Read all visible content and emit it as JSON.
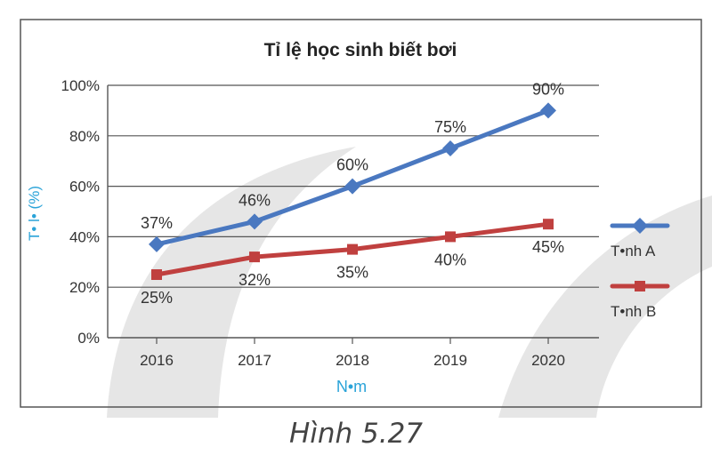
{
  "chart_data": {
    "type": "line",
    "title": "Tỉ lệ học sinh biết bơi",
    "xlabel": "N•m",
    "ylabel": "T• l• (%)",
    "categories": [
      "2016",
      "2017",
      "2018",
      "2019",
      "2020"
    ],
    "ylim": [
      0,
      100
    ],
    "yticks": [
      0,
      20,
      40,
      60,
      80,
      100
    ],
    "ytick_labels": [
      "0%",
      "20%",
      "40%",
      "60%",
      "80%",
      "100%"
    ],
    "grid": true,
    "legend_position": "right",
    "series": [
      {
        "name": "T•nh A",
        "values": [
          37,
          46,
          60,
          75,
          90
        ],
        "labels": [
          "37%",
          "46%",
          "60%",
          "75%",
          "90%"
        ],
        "color": "#4a78c0",
        "marker": "diamond"
      },
      {
        "name": "T•nh B",
        "values": [
          25,
          32,
          35,
          40,
          45
        ],
        "labels": [
          "25%",
          "32%",
          "35%",
          "40%",
          "45%"
        ],
        "color": "#c0403f",
        "marker": "square"
      }
    ]
  },
  "caption": "Hình 5.27",
  "colors": {
    "frame": "#555555",
    "grid": "#555555",
    "axis_title": "#2aa3d8",
    "text": "#333333",
    "watermark": "#e3e3e3"
  }
}
